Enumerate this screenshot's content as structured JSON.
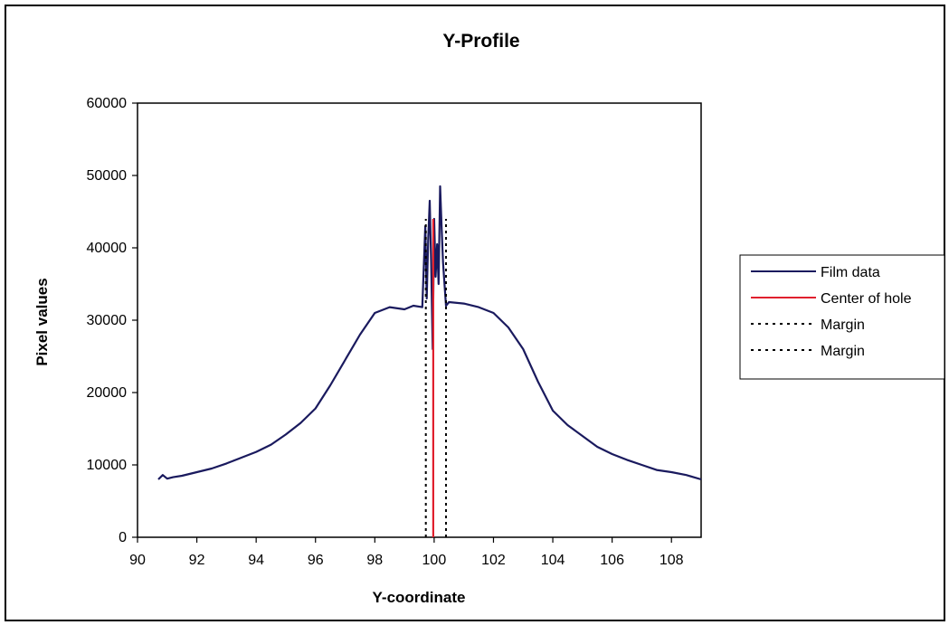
{
  "chart_data": {
    "type": "line",
    "title": "Y-Profile",
    "xlabel": "Y-coordinate",
    "ylabel": "Pixel values",
    "xlim": [
      90,
      109
    ],
    "ylim": [
      0,
      60000
    ],
    "xticks": [
      "90",
      "92",
      "94",
      "96",
      "98",
      "100",
      "102",
      "104",
      "106",
      "108"
    ],
    "yticks": [
      "0",
      "10000",
      "20000",
      "30000",
      "40000",
      "50000",
      "60000"
    ],
    "grid": false,
    "legend_position": "right",
    "series": [
      {
        "name": "Film data",
        "color": "#1a1a5e",
        "style": "solid",
        "x": [
          90.7,
          90.85,
          91.0,
          91.2,
          91.5,
          92.0,
          92.5,
          93.0,
          93.5,
          94.0,
          94.5,
          95.0,
          95.5,
          96.0,
          96.5,
          97.0,
          97.5,
          98.0,
          98.5,
          99.0,
          99.3,
          99.6,
          99.7,
          99.75,
          99.8,
          99.85,
          99.9,
          99.95,
          100.0,
          100.05,
          100.1,
          100.15,
          100.2,
          100.25,
          100.3,
          100.4,
          100.5,
          101.0,
          101.5,
          102.0,
          102.5,
          103.0,
          103.5,
          104.0,
          104.5,
          105.0,
          105.5,
          106.0,
          106.5,
          107.0,
          107.5,
          108.0,
          108.5,
          109.0
        ],
        "y": [
          8000,
          8600,
          8100,
          8300,
          8500,
          9000,
          9500,
          10200,
          11000,
          11800,
          12800,
          14200,
          15800,
          17800,
          21000,
          24500,
          28000,
          31000,
          31800,
          31500,
          32000,
          31800,
          43000,
          33000,
          41000,
          46500,
          38000,
          26000,
          44000,
          36000,
          40500,
          35000,
          48500,
          43000,
          38000,
          32000,
          32500,
          32300,
          31800,
          31000,
          29000,
          26000,
          21500,
          17500,
          15500,
          14000,
          12500,
          11500,
          10700,
          10000,
          9300,
          9000,
          8600,
          8000
        ]
      },
      {
        "name": "Center of hole",
        "color": "#e0202e",
        "style": "solid",
        "x": [
          99.97,
          99.97
        ],
        "y": [
          0,
          44000
        ]
      },
      {
        "name": "Margin",
        "color": "#000000",
        "style": "dotted",
        "x": [
          99.72,
          99.72
        ],
        "y": [
          0,
          44000
        ]
      },
      {
        "name": "Margin",
        "color": "#000000",
        "style": "dotted",
        "x": [
          100.4,
          100.4
        ],
        "y": [
          0,
          44000
        ]
      }
    ]
  }
}
